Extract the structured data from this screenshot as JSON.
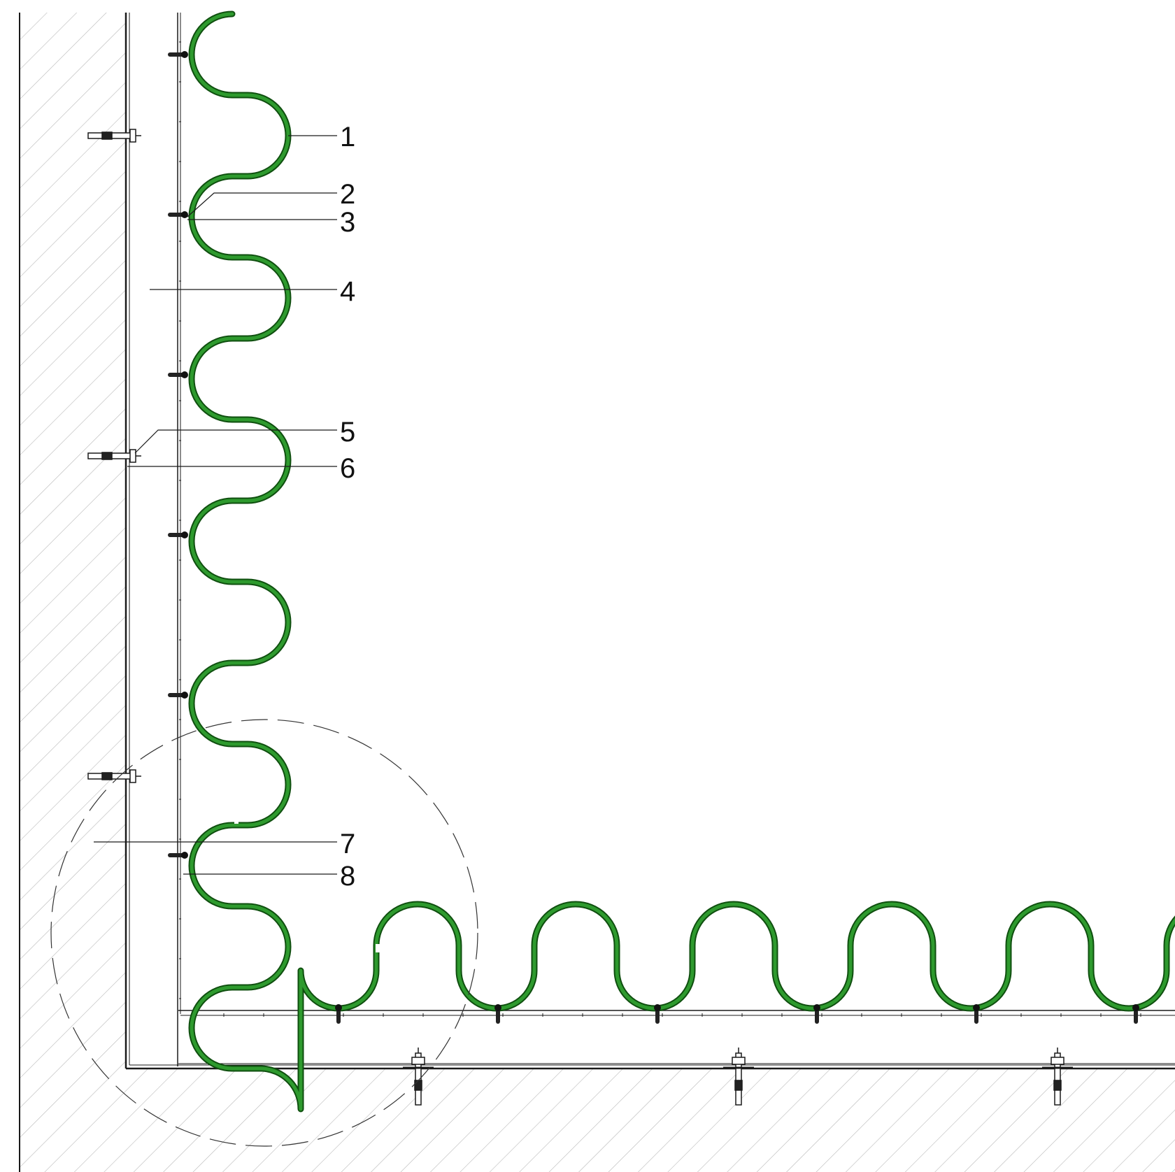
{
  "callouts": [
    {
      "label": "1"
    },
    {
      "label": "2"
    },
    {
      "label": "3"
    },
    {
      "label": "4"
    },
    {
      "label": "5"
    },
    {
      "label": "6"
    },
    {
      "label": "7"
    },
    {
      "label": "8"
    }
  ],
  "colors": {
    "pipe": "#2e9a2e",
    "pipe_outline": "#0f4f0f",
    "hatch": "#b9b9b9",
    "line": "#1a1a1a",
    "dashed_circle": "#333333"
  }
}
